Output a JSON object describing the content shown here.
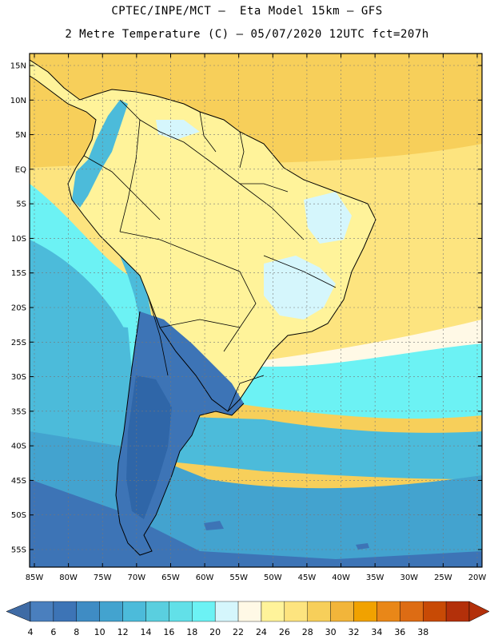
{
  "title_line1": "CPTEC/INPE/MCT –  Eta Model 15km – GFS",
  "title_line2": "2 Metre Temperature (C) – 05/07/2020 12UTC fct=207h",
  "lat_labels": [
    "15N",
    "10N",
    "5N",
    "EQ",
    "5S",
    "10S",
    "15S",
    "20S",
    "25S",
    "30S",
    "35S",
    "40S",
    "45S",
    "50S",
    "55S"
  ],
  "lat_values": [
    15,
    10,
    5,
    0,
    -5,
    -10,
    -15,
    -20,
    -25,
    -30,
    -35,
    -40,
    -45,
    -50,
    -55
  ],
  "lon_labels": [
    "85W",
    "80W",
    "75W",
    "70W",
    "65W",
    "60W",
    "55W",
    "50W",
    "45W",
    "40W",
    "35W",
    "30W",
    "25W",
    "20W"
  ],
  "lon_values": [
    -85,
    -80,
    -75,
    -70,
    -65,
    -60,
    -55,
    -50,
    -45,
    -40,
    -35,
    -30,
    -25,
    -20
  ],
  "colorbar": {
    "labels": [
      "4",
      "6",
      "8",
      "10",
      "12",
      "14",
      "16",
      "18",
      "20",
      "22",
      "24",
      "26",
      "28",
      "30",
      "32",
      "34",
      "36",
      "38"
    ],
    "colors": [
      "#4a7fbe",
      "#3d74b6",
      "#3f8cc4",
      "#43a3cf",
      "#4cbbda",
      "#5acfdf",
      "#62e0e8",
      "#6cf2f4",
      "#d5f6fc",
      "#fff9e6",
      "#fff39a",
      "#fde47f",
      "#f7cf5a",
      "#f2b53a",
      "#f1a200",
      "#e98718",
      "#dd6c14",
      "#c84a05",
      "#b3300a"
    ],
    "left_arrow_color": "#3f6ba5",
    "right_arrow_color": "#b3300a"
  },
  "map_colors": {
    "ocean_warm_north": "#f7cf5a",
    "ocean_atlantic": "#fde47f",
    "ocean_pale": "#fff9e6",
    "ocean_cyan": "#6cf2f4",
    "ocean_teal": "#4cbbda",
    "ocean_mid": "#43a3cf",
    "ocean_deep": "#3f8cc4",
    "ocean_far": "#3d74b6",
    "land_tropical": "#fff39a",
    "land_cool_patch": "#d5f6fc",
    "land_andes": "#4cbbda",
    "land_south": "#3d74b6",
    "land_south_deep": "#2f66a8"
  }
}
